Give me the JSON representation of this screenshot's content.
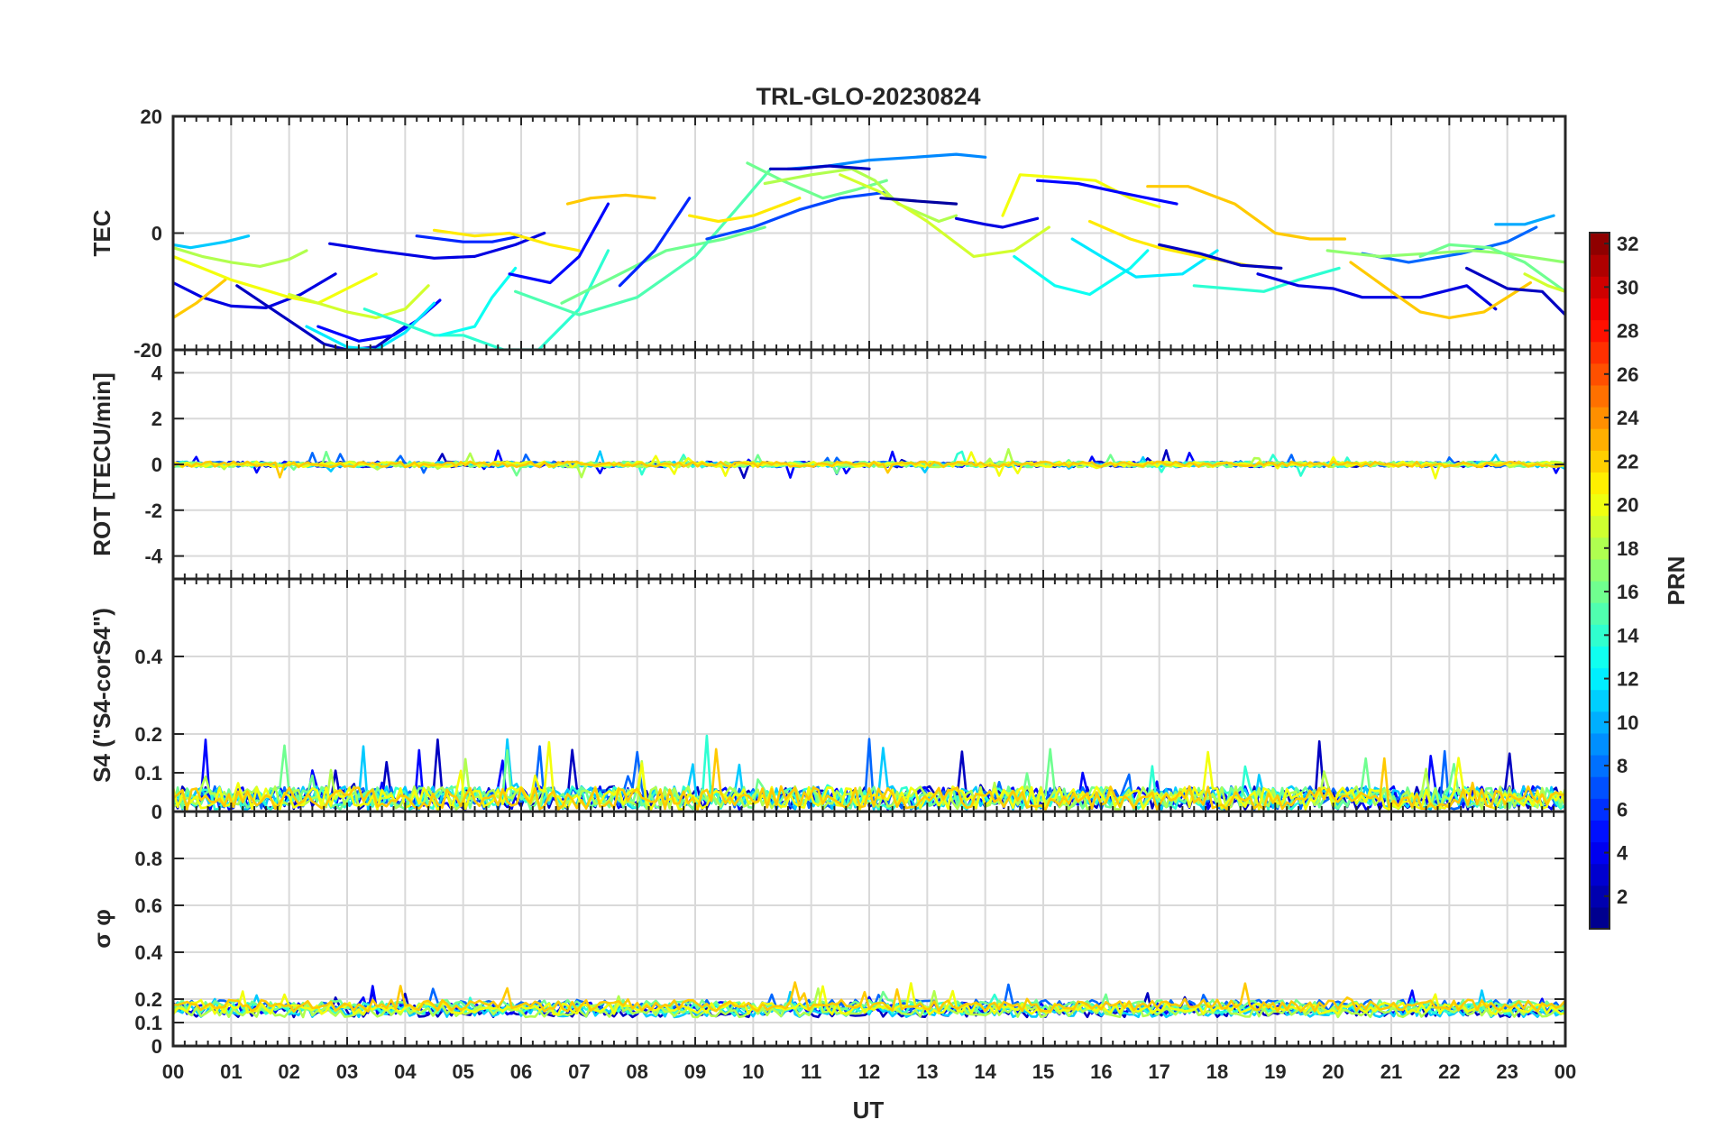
{
  "chart_data": {
    "type": "line",
    "title": "TRL-GLO-20230824",
    "xlabel": "UT",
    "x_tick_labels": [
      "00",
      "01",
      "02",
      "03",
      "04",
      "05",
      "06",
      "07",
      "08",
      "09",
      "10",
      "11",
      "12",
      "13",
      "14",
      "15",
      "16",
      "17",
      "18",
      "19",
      "20",
      "21",
      "22",
      "23",
      "00"
    ],
    "xlim_hours": [
      0,
      24
    ],
    "colorbar": {
      "label": "PRN",
      "range": [
        1,
        32
      ],
      "tick_labels": [
        "2",
        "4",
        "6",
        "8",
        "10",
        "12",
        "14",
        "16",
        "18",
        "20",
        "22",
        "24",
        "26",
        "28",
        "30",
        "32"
      ],
      "colormap": "jet"
    },
    "panels": [
      {
        "id": "tec",
        "ylabel": "TEC",
        "ylim": [
          -20,
          20
        ],
        "ticks": [
          {
            "v": -20,
            "label": "-20"
          },
          {
            "v": 0,
            "label": "0"
          },
          {
            "v": 20,
            "label": "20"
          }
        ],
        "series": [
          {
            "prn": 4,
            "t": [
              0,
              0.5,
              1,
              1.6,
              2.2,
              2.8
            ],
            "v": [
              -8.5,
              -11,
              -12.5,
              -12.8,
              -10.5,
              -7
            ]
          },
          {
            "prn": 22,
            "t": [
              0,
              0.4,
              0.9
            ],
            "v": [
              -14.5,
              -12,
              -8
            ]
          },
          {
            "prn": 18,
            "t": [
              0,
              0.5,
              1,
              1.5,
              2,
              2.3
            ],
            "v": [
              -2.5,
              -4,
              -5,
              -5.7,
              -4.5,
              -3
            ]
          },
          {
            "prn": 11,
            "t": [
              0,
              0.3,
              0.6,
              0.9,
              1.3
            ],
            "v": [
              -2,
              -2.5,
              -2,
              -1.5,
              -0.5
            ]
          },
          {
            "prn": 20,
            "t": [
              0,
              1,
              2,
              2.5,
              3.5
            ],
            "v": [
              -4,
              -8,
              -11,
              -12,
              -7
            ]
          },
          {
            "prn": 3,
            "t": [
              1.1,
              2,
              2.6,
              3,
              3.5,
              4
            ],
            "v": [
              -9,
              -15,
              -19,
              -20,
              -19.5,
              -16
            ]
          },
          {
            "prn": 5,
            "t": [
              2.5,
              3.2,
              3.8,
              4.2,
              4.6
            ],
            "v": [
              -16,
              -18.5,
              -17.5,
              -15,
              -11.5
            ]
          },
          {
            "prn": 12,
            "t": [
              2.3,
              3,
              3.5,
              4,
              4.5
            ],
            "v": [
              -16,
              -19.5,
              -20,
              -17,
              -12
            ]
          },
          {
            "prn": 19,
            "t": [
              2,
              3,
              3.5,
              4,
              4.4
            ],
            "v": [
              -10.5,
              -13.5,
              -14.5,
              -13,
              -9
            ]
          },
          {
            "prn": 14,
            "t": [
              3.3,
              4.5,
              5,
              5.7,
              6.3,
              7,
              7.5
            ],
            "v": [
              -13,
              -17.5,
              -17.5,
              -20,
              -20,
              -13,
              -3
            ]
          },
          {
            "prn": 13,
            "t": [
              4.6,
              5.2,
              5.5,
              5.9
            ],
            "v": [
              -17.5,
              -16,
              -11,
              -6
            ]
          },
          {
            "prn": 4,
            "t": [
              2.7,
              3.5,
              4.5,
              5.2,
              5.9,
              6.4
            ],
            "v": [
              -1.8,
              -3,
              -4.3,
              -4,
              -2,
              0
            ]
          },
          {
            "prn": 6,
            "t": [
              4.2,
              5,
              5.5,
              6
            ],
            "v": [
              -0.5,
              -1.5,
              -1.5,
              -0.5
            ]
          },
          {
            "prn": 21,
            "t": [
              4.5,
              5.2,
              5.8,
              6.5,
              7
            ],
            "v": [
              0.5,
              -0.5,
              0,
              -2,
              -3
            ]
          },
          {
            "prn": 16,
            "t": [
              6.7,
              7.5,
              8.5,
              9.5,
              10.2
            ],
            "v": [
              -12,
              -8,
              -3,
              -1,
              1
            ]
          },
          {
            "prn": 5,
            "t": [
              5.8,
              6.5,
              7,
              7.5
            ],
            "v": [
              -7,
              -8.5,
              -4,
              5
            ]
          },
          {
            "prn": 15,
            "t": [
              5.9,
              7,
              8,
              9,
              9.7,
              10.3
            ],
            "v": [
              -10,
              -14,
              -11,
              -4,
              4,
              11
            ]
          },
          {
            "prn": 22,
            "t": [
              6.8,
              7.2,
              7.8,
              8.3
            ],
            "v": [
              5,
              6,
              6.5,
              6
            ]
          },
          {
            "prn": 6,
            "t": [
              7.7,
              8.3,
              8.9
            ],
            "v": [
              -9,
              -3,
              6
            ]
          },
          {
            "prn": 21,
            "t": [
              8.9,
              9.4,
              10,
              10.8
            ],
            "v": [
              3,
              2,
              3,
              6
            ]
          },
          {
            "prn": 7,
            "t": [
              9.2,
              10,
              10.8,
              11.5,
              12.3
            ],
            "v": [
              -1,
              1,
              4,
              6,
              7
            ]
          },
          {
            "prn": 16,
            "t": [
              9.9,
              10.5,
              11.2,
              11.8,
              12.3
            ],
            "v": [
              12,
              9,
              6,
              7.5,
              9
            ]
          },
          {
            "prn": 18,
            "t": [
              10.2,
              11,
              11.7,
              12.1,
              12.5,
              13.2,
              13.5
            ],
            "v": [
              8.5,
              10,
              11,
              9,
              5,
              2,
              3
            ]
          },
          {
            "prn": 9,
            "t": [
              10.6,
              11.3,
              12,
              12.8,
              13.5,
              14
            ],
            "v": [
              11,
              11.5,
              12.5,
              13,
              13.5,
              13
            ]
          },
          {
            "prn": 3,
            "t": [
              10.3,
              10.8,
              11.3,
              12
            ],
            "v": [
              11,
              11,
              11.5,
              11
            ]
          },
          {
            "prn": 19,
            "t": [
              11.5,
              12.2,
              13,
              13.8,
              14.5,
              15.1
            ],
            "v": [
              10,
              7,
              2,
              -4,
              -3,
              1
            ]
          },
          {
            "prn": 2,
            "t": [
              12.2,
              12.8,
              13.5
            ],
            "v": [
              6,
              5.5,
              5
            ]
          },
          {
            "prn": 4,
            "t": [
              13.5,
              14,
              14.3,
              14.9
            ],
            "v": [
              2.5,
              1.5,
              1,
              2.5
            ]
          },
          {
            "prn": 20,
            "t": [
              14.3,
              14.6,
              15.3,
              15.9,
              16.5,
              17
            ],
            "v": [
              3,
              10,
              9.5,
              9,
              6,
              4.5
            ]
          },
          {
            "prn": 5,
            "t": [
              14.9,
              15.6,
              16.3,
              16.8,
              17.3
            ],
            "v": [
              9,
              8.5,
              7,
              6,
              5
            ]
          },
          {
            "prn": 13,
            "t": [
              14.5,
              15.2,
              15.8,
              16.5,
              16.8
            ],
            "v": [
              -4,
              -9,
              -10.5,
              -6,
              -3
            ]
          },
          {
            "prn": 12,
            "t": [
              15.5,
              16,
              16.6,
              17.4,
              18
            ],
            "v": [
              -1,
              -4,
              -7.5,
              -7,
              -3
            ]
          },
          {
            "prn": 22,
            "t": [
              16.8,
              17.5,
              18.3,
              19,
              19.6,
              20.2
            ],
            "v": [
              8,
              8,
              5,
              0,
              -1,
              -1
            ]
          },
          {
            "prn": 21,
            "t": [
              15.8,
              16.5,
              17,
              17.7,
              18.5,
              19
            ],
            "v": [
              2,
              -1,
              -2.5,
              -4,
              -5.5,
              -6
            ]
          },
          {
            "prn": 3,
            "t": [
              17,
              17.7,
              18.4,
              19.1
            ],
            "v": [
              -2,
              -3.5,
              -5.5,
              -6
            ]
          },
          {
            "prn": 14,
            "t": [
              17.6,
              18.2,
              18.8,
              19.4,
              20.1
            ],
            "v": [
              -9,
              -9.5,
              -10,
              -8,
              -6
            ]
          },
          {
            "prn": 4,
            "t": [
              18.7,
              19.4,
              20,
              20.5,
              21.5,
              22.3,
              22.8
            ],
            "v": [
              -7,
              -9,
              -9.5,
              -11,
              -11,
              -9,
              -13
            ]
          },
          {
            "prn": 22,
            "t": [
              20.3,
              21,
              21.5,
              22,
              22.6,
              23.4
            ],
            "v": [
              -5,
              -10,
              -13.5,
              -14.5,
              -13.5,
              -8.5
            ]
          },
          {
            "prn": 8,
            "t": [
              20.5,
              21.3,
              22.2,
              23,
              23.5
            ],
            "v": [
              -3.5,
              -5,
              -3.5,
              -1.5,
              1
            ]
          },
          {
            "prn": 17,
            "t": [
              19.9,
              20.8,
              21.6,
              22.4,
              23,
              24
            ],
            "v": [
              -3,
              -4,
              -3.5,
              -3,
              -3.5,
              -5
            ]
          },
          {
            "prn": 16,
            "t": [
              21.5,
              22,
              22.7,
              23.3,
              24
            ],
            "v": [
              -4,
              -2,
              -2.5,
              -5,
              -10
            ]
          },
          {
            "prn": 3,
            "t": [
              22.3,
              23,
              23.6,
              24
            ],
            "v": [
              -6,
              -9.5,
              -10,
              -14
            ]
          },
          {
            "prn": 10,
            "t": [
              22.8,
              23.3,
              23.8
            ],
            "v": [
              1.5,
              1.5,
              3
            ]
          },
          {
            "prn": 19,
            "t": [
              23.3,
              23.7,
              24
            ],
            "v": [
              -7,
              -9,
              -10
            ]
          }
        ]
      },
      {
        "id": "rot",
        "ylabel": "ROT [TECU/min]",
        "ylim": [
          -5,
          5
        ],
        "ticks": [
          {
            "v": -4,
            "label": "-4"
          },
          {
            "v": -2,
            "label": "-2"
          },
          {
            "v": 0,
            "label": "0"
          },
          {
            "v": 2,
            "label": "2"
          },
          {
            "v": 4,
            "label": "4"
          }
        ],
        "noise": {
          "base": 0,
          "amp": 0.12,
          "spike_amp": 0.55
        }
      },
      {
        "id": "s4",
        "ylabel": "S4 (\"S4-corS4\")",
        "ylim": [
          0,
          0.6
        ],
        "ticks": [
          {
            "v": 0,
            "label": "0"
          },
          {
            "v": 0.1,
            "label": "0.1"
          },
          {
            "v": 0.2,
            "label": "0.2"
          },
          {
            "v": 0.4,
            "label": "0.4"
          }
        ],
        "noise": {
          "base": 0.035,
          "amp": 0.03,
          "spike_amp": 0.15
        }
      },
      {
        "id": "sigma",
        "ylabel": "σ φ",
        "ylim": [
          0,
          1
        ],
        "ticks": [
          {
            "v": 0,
            "label": "0"
          },
          {
            "v": 0.1,
            "label": "0.1"
          },
          {
            "v": 0.2,
            "label": "0.2"
          },
          {
            "v": 0.4,
            "label": "0.4"
          },
          {
            "v": 0.6,
            "label": "0.6"
          },
          {
            "v": 0.8,
            "label": "0.8"
          }
        ],
        "noise": {
          "base": 0.16,
          "amp": 0.025,
          "spike_amp": 0.09
        }
      }
    ]
  }
}
